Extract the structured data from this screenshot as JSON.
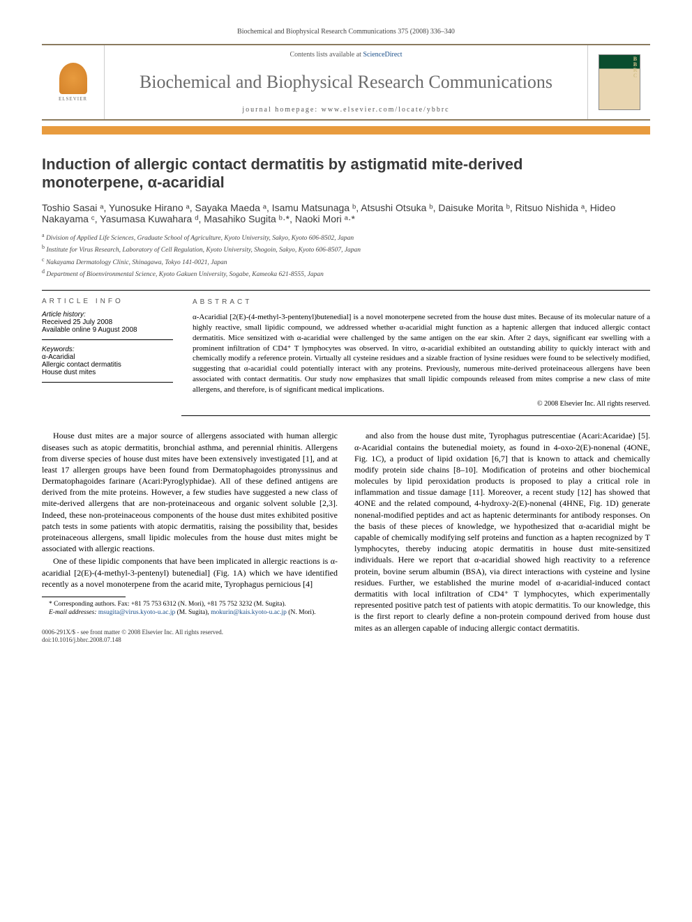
{
  "header": {
    "journal_ref": "Biochemical and Biophysical Research Communications 375 (2008) 336–340",
    "contents_label": "Contents lists available at",
    "contents_link": "ScienceDirect",
    "journal_name": "Biochemical and Biophysical Research Communications",
    "homepage_label": "journal homepage: ",
    "homepage_url": "www.elsevier.com/locate/ybbrc",
    "publisher": "ELSEVIER",
    "cover_abbr": "BBRC"
  },
  "article": {
    "title_line1": "Induction of allergic contact dermatitis by astigmatid mite-derived",
    "title_line2": "monoterpene, α-acaridial",
    "authors_html": "Toshio Sasai ᵃ, Yunosuke Hirano ᵃ, Sayaka Maeda ᵃ, Isamu Matsunaga ᵇ, Atsushi Otsuka ᵇ, Daisuke Morita ᵇ, Ritsuo Nishida ᵃ, Hideo Nakayama ᶜ, Yasumasa Kuwahara ᵈ, Masahiko Sugita ᵇ·*, Naoki Mori ᵃ·*",
    "affiliations": {
      "a": "Division of Applied Life Sciences, Graduate School of Agriculture, Kyoto University, Sakyo, Kyoto 606-8502, Japan",
      "b": "Institute for Virus Research, Laboratory of Cell Regulation, Kyoto University, Shogoin, Sakyo, Kyoto 606-8507, Japan",
      "c": "Nakayama Dermatology Clinic, Shinagawa, Tokyo 141-0021, Japan",
      "d": "Department of Bioenvironmental Science, Kyoto Gakuen University, Sogabe, Kameoka 621-8555, Japan"
    }
  },
  "article_info": {
    "heading": "ARTICLE INFO",
    "history_label": "Article history:",
    "received": "Received 25 July 2008",
    "online": "Available online 9 August 2008",
    "keywords_label": "Keywords:",
    "keywords": [
      "α-Acaridial",
      "Allergic contact dermatitis",
      "House dust mites"
    ]
  },
  "abstract": {
    "heading": "ABSTRACT",
    "text": "α-Acaridial [2(E)-(4-methyl-3-pentenyl)butenedial] is a novel monoterpene secreted from the house dust mites. Because of its molecular nature of a highly reactive, small lipidic compound, we addressed whether α-acaridial might function as a haptenic allergen that induced allergic contact dermatitis. Mice sensitized with α-acaridial were challenged by the same antigen on the ear skin. After 2 days, significant ear swelling with a prominent infiltration of CD4⁺ T lymphocytes was observed. In vitro, α-acaridial exhibited an outstanding ability to quickly interact with and chemically modify a reference protein. Virtually all cysteine residues and a sizable fraction of lysine residues were found to be selectively modified, suggesting that α-acaridial could potentially interact with any proteins. Previously, numerous mite-derived proteinaceous allergens have been associated with contact dermatitis. Our study now emphasizes that small lipidic compounds released from mites comprise a new class of mite allergens, and therefore, is of significant medical implications.",
    "copyright": "© 2008 Elsevier Inc. All rights reserved."
  },
  "body": {
    "p1": "House dust mites are a major source of allergens associated with human allergic diseases such as atopic dermatitis, bronchial asthma, and perennial rhinitis. Allergens from diverse species of house dust mites have been extensively investigated [1], and at least 17 allergen groups have been found from Dermatophagoides ptronyssinus and Dermatophagoides farinare (Acari:Pyroglyphidae). All of these defined antigens are derived from the mite proteins. However, a few studies have suggested a new class of mite-derived allergens that are non-proteinaceous and organic solvent soluble [2,3]. Indeed, these non-proteinaceous components of the house dust mites exhibited positive patch tests in some patients with atopic dermatitis, raising the possibility that, besides proteinaceous allergens, small lipidic molecules from the house dust mites might be associated with allergic reactions.",
    "p2": "One of these lipidic components that have been implicated in allergic reactions is α-acaridial [2(E)-(4-methyl-3-pentenyl) butenedial] (Fig. 1A) which we have identified recently as a novel monoterpene from the acarid mite, Tyrophagus pernicious [4]",
    "p3": "and also from the house dust mite, Tyrophagus putrescentiae (Acari:Acaridae) [5]. α-Acaridial contains the butenedial moiety, as found in 4-oxo-2(E)-nonenal (4ONE, Fig. 1C), a product of lipid oxidation [6,7] that is known to attack and chemically modify protein side chains [8–10]. Modification of proteins and other biochemical molecules by lipid peroxidation products is proposed to play a critical role in inflammation and tissue damage [11]. Moreover, a recent study [12] has showed that 4ONE and the related compound, 4-hydroxy-2(E)-nonenal (4HNE, Fig. 1D) generate nonenal-modified peptides and act as haptenic determinants for antibody responses. On the basis of these pieces of knowledge, we hypothesized that α-acaridial might be capable of chemically modifying self proteins and function as a hapten recognized by T lymphocytes, thereby inducing atopic dermatitis in house dust mite-sensitized individuals. Here we report that α-acaridial showed high reactivity to a reference protein, bovine serum albumin (BSA), via direct interactions with cysteine and lysine residues. Further, we established the murine model of α-acaridial-induced contact dermatitis with local infiltration of CD4⁺ T lymphocytes, which experimentally represented positive patch test of patients with atopic dermatitis. To our knowledge, this is the first report to clearly define a non-protein compound derived from house dust mites as an allergen capable of inducing allergic contact dermatitis."
  },
  "footnotes": {
    "corr": "* Corresponding authors. Fax: +81 75 753 6312 (N. Mori), +81 75 752 3232 (M. Sugita).",
    "email_label": "E-mail addresses:",
    "email1": "msugita@virus.kyoto-u.ac.jp",
    "email1_who": "(M. Sugita),",
    "email2": "mokurin@kais.kyoto-u.ac.jp",
    "email2_who": "(N. Mori)."
  },
  "footer": {
    "issn": "0006-291X/$ - see front matter © 2008 Elsevier Inc. All rights reserved.",
    "doi": "doi:10.1016/j.bbrc.2008.07.148"
  },
  "colors": {
    "accent_orange": "#e89b3e",
    "border_brown": "#8a7a5e",
    "link_blue": "#1a4f8a",
    "title_gray": "#3a3a3a",
    "journal_gray": "#6b6b6b"
  }
}
